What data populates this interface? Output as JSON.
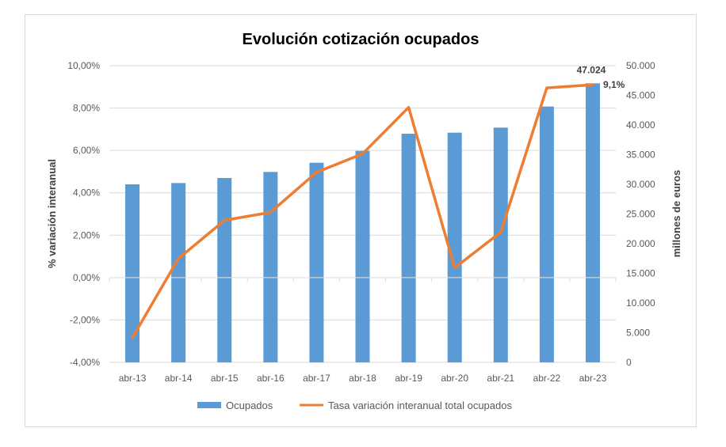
{
  "chart_data": {
    "type": "bar+line",
    "title": "Evolución cotización ocupados",
    "ylabel_left": "% variación interanual",
    "ylabel_right": "millones de euros",
    "categories": [
      "abr-13",
      "abr-14",
      "abr-15",
      "abr-16",
      "abr-17",
      "abr-18",
      "abr-19",
      "abr-20",
      "abr-21",
      "abr-22",
      "abr-23"
    ],
    "left_axis": {
      "range": [
        -4,
        10
      ],
      "ticks": [
        "-4,00%",
        "-2,00%",
        "0,00%",
        "2,00%",
        "4,00%",
        "6,00%",
        "8,00%",
        "10,00%"
      ]
    },
    "right_axis": {
      "range": [
        0,
        50000
      ],
      "ticks": [
        "0",
        "5.000",
        "10.000",
        "15.000",
        "20.000",
        "25.000",
        "30.000",
        "35.000",
        "40.000",
        "45.000",
        "50.000"
      ]
    },
    "grid": true,
    "legend_position": "bottom",
    "series": [
      {
        "name": "Ocupados",
        "type": "bar",
        "axis": "right",
        "color": "#5b9bd5",
        "values": [
          30000,
          30220,
          31070,
          32090,
          33640,
          35640,
          38530,
          38710,
          39560,
          43110,
          47024
        ],
        "last_label": "47.024"
      },
      {
        "name": "Tasa variación interanual total ocupados",
        "type": "line",
        "axis": "left",
        "color": "#ed7d31",
        "values": [
          -2.84,
          0.9,
          2.7,
          3.08,
          4.97,
          5.84,
          8.03,
          0.46,
          2.14,
          8.95,
          9.1
        ],
        "last_label": "9,1%"
      }
    ]
  }
}
